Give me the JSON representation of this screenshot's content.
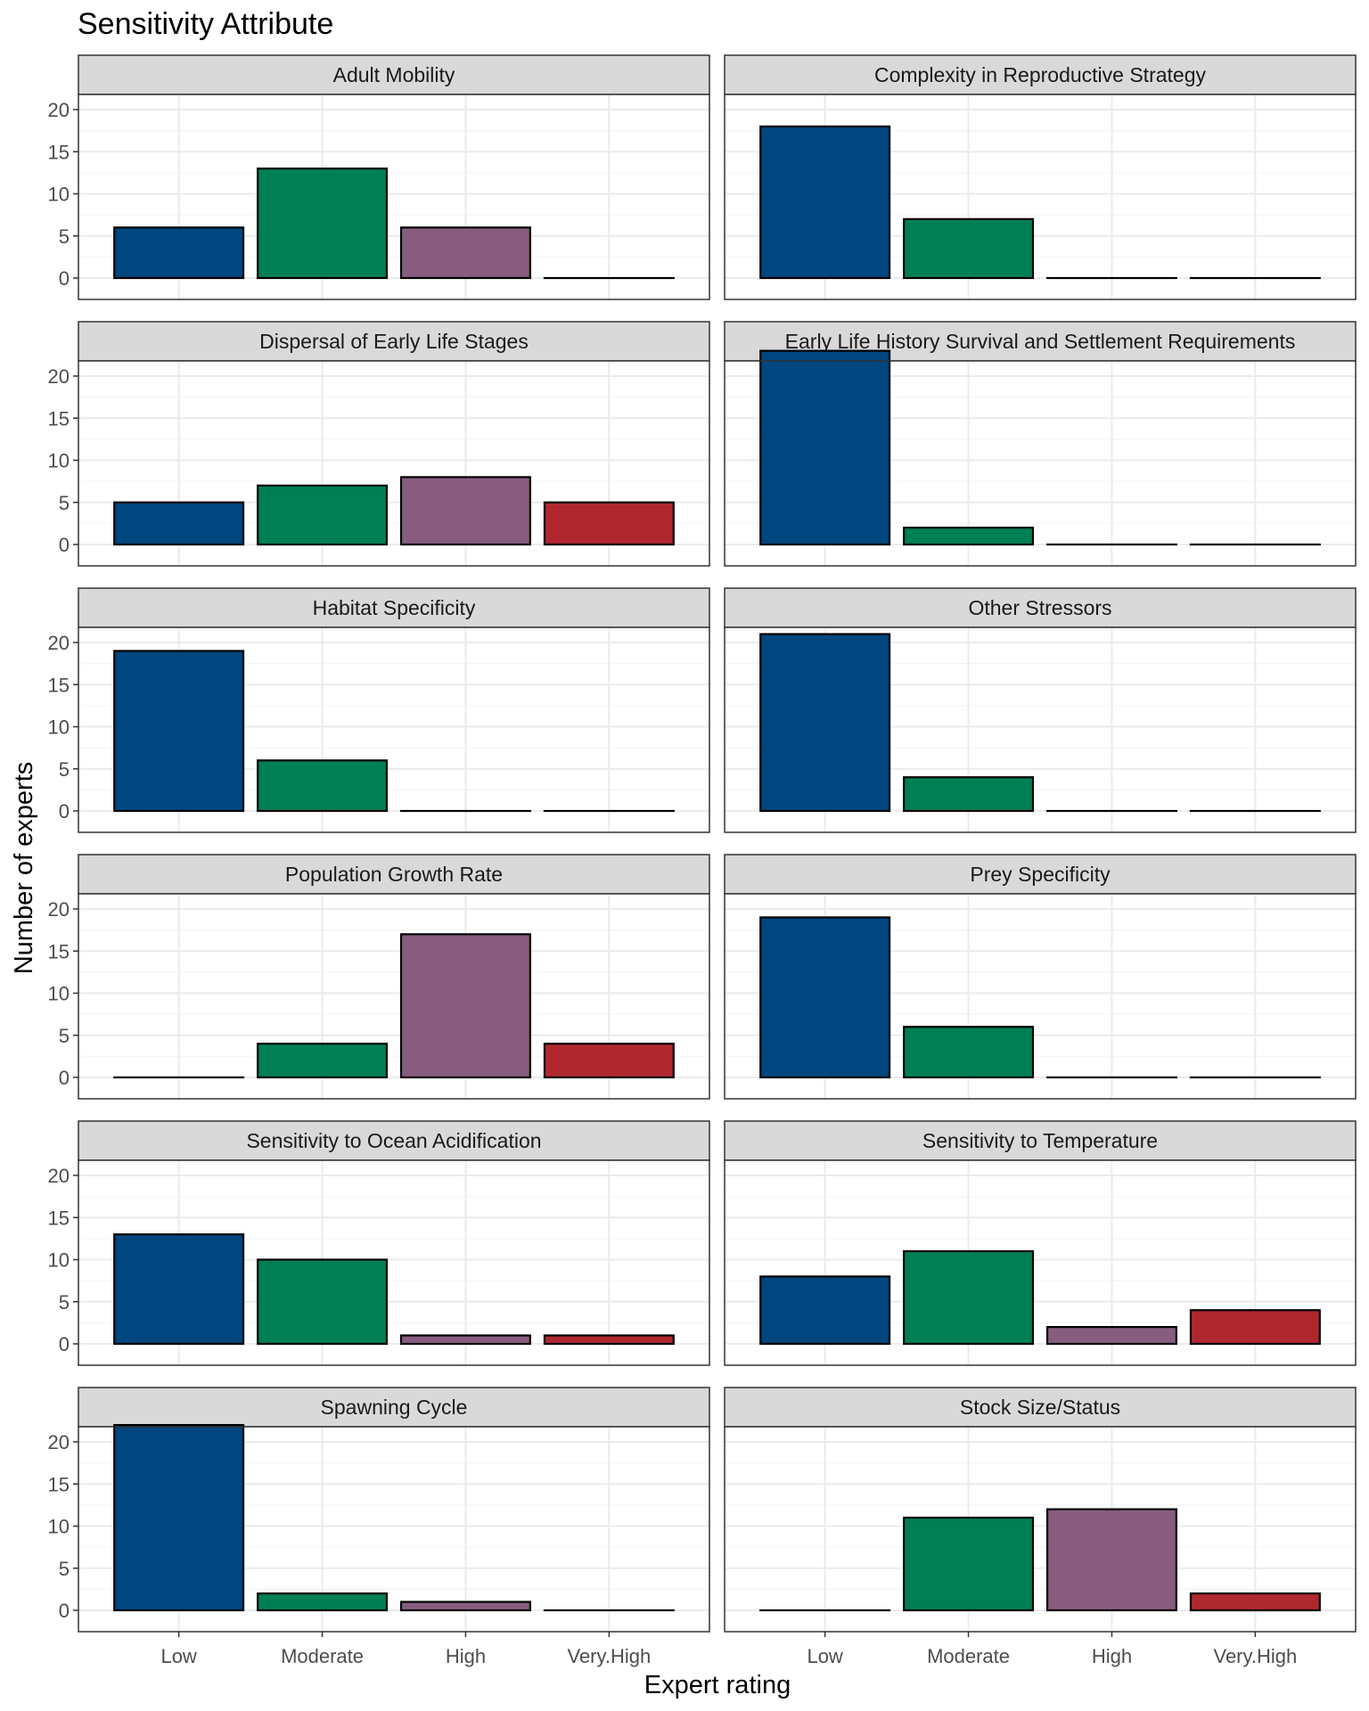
{
  "chart_data": {
    "type": "bar",
    "title": "Sensitivity Attribute",
    "xlabel": "Expert rating",
    "ylabel": "Number of experts",
    "categories": [
      "Low",
      "Moderate",
      "High",
      "Very.High"
    ],
    "yticks": [
      0,
      5,
      10,
      15,
      20
    ],
    "ylim": [
      0,
      24
    ],
    "grid": true,
    "colors": {
      "Low": "#00467f",
      "Moderate": "#007f54",
      "High": "#885c7f",
      "Very.High": "#b0282f",
      "panel_border": "#333333",
      "strip_fill": "#d9d9d9",
      "grid_major": "#ebebeb",
      "grid_minor": "#f5f5f5"
    },
    "panels": [
      {
        "name": "Adult Mobility",
        "values": [
          6,
          13,
          6,
          0
        ]
      },
      {
        "name": "Complexity in Reproductive Strategy",
        "values": [
          18,
          7,
          0,
          0
        ]
      },
      {
        "name": "Dispersal of Early Life Stages",
        "values": [
          5,
          7,
          8,
          5
        ]
      },
      {
        "name": "Early Life History Survival and Settlement Requirements",
        "values": [
          23,
          2,
          0,
          0
        ]
      },
      {
        "name": "Habitat Specificity",
        "values": [
          19,
          6,
          0,
          0
        ]
      },
      {
        "name": "Other Stressors",
        "values": [
          21,
          4,
          0,
          0
        ]
      },
      {
        "name": "Population Growth Rate",
        "values": [
          0,
          4,
          17,
          4
        ]
      },
      {
        "name": "Prey Specificity",
        "values": [
          19,
          6,
          0,
          0
        ]
      },
      {
        "name": "Sensitivity to Ocean Acidification",
        "values": [
          13,
          10,
          1,
          1
        ]
      },
      {
        "name": "Sensitivity to Temperature",
        "values": [
          8,
          11,
          2,
          4
        ]
      },
      {
        "name": "Spawning Cycle",
        "values": [
          22,
          2,
          1,
          0
        ]
      },
      {
        "name": "Stock Size/Status",
        "values": [
          0,
          11,
          12,
          2
        ]
      }
    ]
  }
}
